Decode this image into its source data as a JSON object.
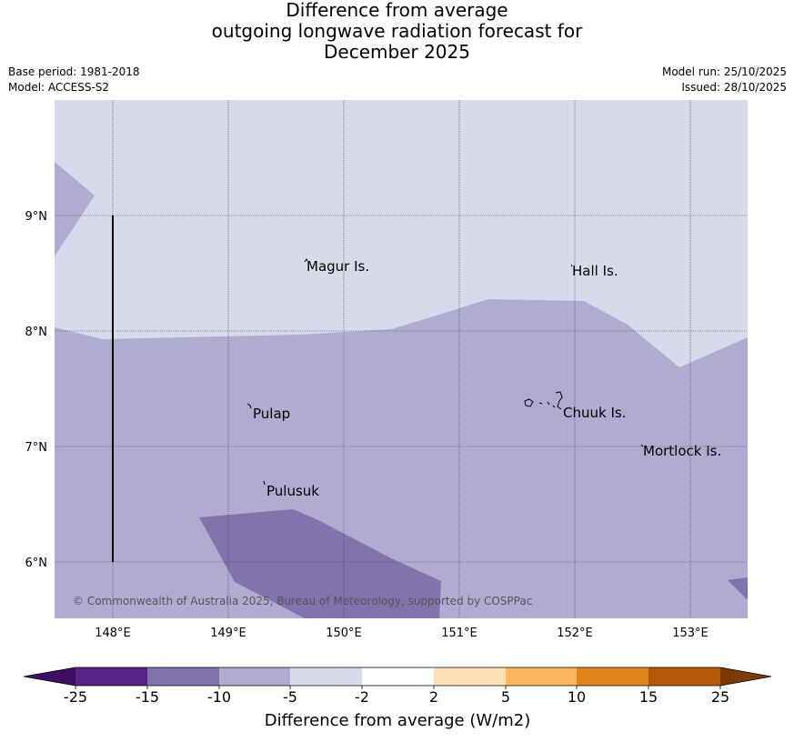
{
  "title_lines": [
    "Difference from average",
    "outgoing longwave radiation forecast for",
    "December 2025"
  ],
  "meta": {
    "base_period": "Base period: 1981-2018",
    "model": "Model: ACCESS-S2",
    "model_run": "Model run: 25/10/2025",
    "issued": "Issued: 28/10/2025"
  },
  "map": {
    "lon_ticks": [
      "148°E",
      "149°E",
      "150°E",
      "151°E",
      "152°E",
      "153°E"
    ],
    "lat_ticks": [
      "9°N",
      "8°N",
      "7°N",
      "6°N"
    ],
    "places": [
      {
        "name": "Magur Is."
      },
      {
        "name": "Hall Is."
      },
      {
        "name": "Pulap"
      },
      {
        "name": "Chuuk Is."
      },
      {
        "name": "Mortlock Is."
      },
      {
        "name": "Pulusuk"
      }
    ],
    "copyright": "© Commonwealth of Australia 2025, Bureau of Meteorology, supported by COSPPac",
    "fill_colors": {
      "very_light": "#d8d9ea",
      "light": "#b0abd1",
      "medium": "#8073ae"
    }
  },
  "legend": {
    "tick_labels": [
      "-25",
      "-15",
      "-10",
      "-5",
      "-2",
      "2",
      "5",
      "10",
      "15",
      "25"
    ],
    "colors": [
      "#3e0e63",
      "#572287",
      "#8073ae",
      "#b0abd1",
      "#d8d9ea",
      "#ffffff",
      "#fde0b5",
      "#fcb460",
      "#e08419",
      "#b35808",
      "#7d3a06"
    ],
    "label": "Difference from average (W/m2)"
  }
}
